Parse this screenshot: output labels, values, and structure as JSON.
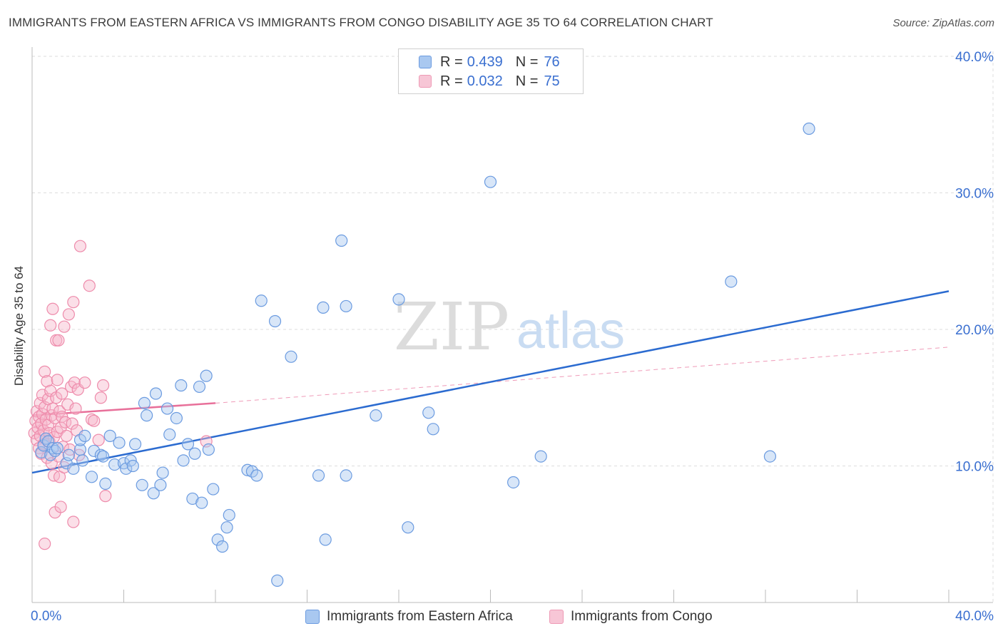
{
  "title": "IMMIGRANTS FROM EASTERN AFRICA VS IMMIGRANTS FROM CONGO DISABILITY AGE 35 TO 64 CORRELATION CHART",
  "source": "Source: ZipAtlas.com",
  "watermark": {
    "zip": "ZIP",
    "atlas": "atlas"
  },
  "legend": {
    "series1": {
      "r_label": "R =",
      "r_value": "0.439",
      "n_label": "N =",
      "n_value": "76"
    },
    "series2": {
      "r_label": "R =",
      "r_value": "0.032",
      "n_label": "N =",
      "n_value": "75"
    }
  },
  "bottom_legend": {
    "series1": "Immigrants from Eastern Africa",
    "series2": "Immigrants from Congo"
  },
  "colors": {
    "blue_fill": "#a9c8f0",
    "blue_stroke": "#6b9be0",
    "blue_line": "#2b6bd0",
    "pink_fill": "#f7b8cc",
    "pink_stroke": "#ee8bab",
    "pink_line": "#e8709a",
    "tick_text": "#3a6fd0",
    "grid": "#dddddd"
  },
  "chart_data": {
    "type": "scatter",
    "title": "IMMIGRANTS FROM EASTERN AFRICA VS IMMIGRANTS FROM CONGO DISABILITY AGE 35 TO 64 CORRELATION CHART",
    "xlabel": "",
    "ylabel": "Disability Age 35 to 64",
    "xlim": [
      0,
      40
    ],
    "ylim": [
      0,
      40
    ],
    "x_tick_labels": [
      "0.0%",
      "40.0%"
    ],
    "y_ticks": [
      10,
      20,
      30,
      40
    ],
    "y_tick_labels": [
      "10.0%",
      "20.0%",
      "30.0%",
      "40.0%"
    ],
    "series": [
      {
        "name": "Immigrants from Eastern Africa",
        "r": 0.439,
        "n": 76,
        "trend": {
          "x": [
            0,
            40
          ],
          "y": [
            9.5,
            22.8
          ],
          "style": "solid"
        },
        "points": [
          [
            0.4,
            11.0
          ],
          [
            0.5,
            11.5
          ],
          [
            0.6,
            12.0
          ],
          [
            0.7,
            11.8
          ],
          [
            0.8,
            10.8
          ],
          [
            0.9,
            11.3
          ],
          [
            1.0,
            11.1
          ],
          [
            1.1,
            11.3
          ],
          [
            1.5,
            10.2
          ],
          [
            1.6,
            10.8
          ],
          [
            1.8,
            9.8
          ],
          [
            2.1,
            11.2
          ],
          [
            2.1,
            11.9
          ],
          [
            2.3,
            12.2
          ],
          [
            2.2,
            10.4
          ],
          [
            2.6,
            9.2
          ],
          [
            2.7,
            11.1
          ],
          [
            3.0,
            10.8
          ],
          [
            3.1,
            10.7
          ],
          [
            3.2,
            8.7
          ],
          [
            3.4,
            12.2
          ],
          [
            3.6,
            10.1
          ],
          [
            3.8,
            11.7
          ],
          [
            4.0,
            10.2
          ],
          [
            4.1,
            9.8
          ],
          [
            4.3,
            10.4
          ],
          [
            4.4,
            10.0
          ],
          [
            4.5,
            11.6
          ],
          [
            4.8,
            8.6
          ],
          [
            4.9,
            14.6
          ],
          [
            5.0,
            13.7
          ],
          [
            5.3,
            8.0
          ],
          [
            5.4,
            15.3
          ],
          [
            5.6,
            8.6
          ],
          [
            5.7,
            9.5
          ],
          [
            5.9,
            14.2
          ],
          [
            6.0,
            12.3
          ],
          [
            6.3,
            13.5
          ],
          [
            6.5,
            15.9
          ],
          [
            6.6,
            10.4
          ],
          [
            6.8,
            11.6
          ],
          [
            7.0,
            7.6
          ],
          [
            7.1,
            10.9
          ],
          [
            7.3,
            15.8
          ],
          [
            7.4,
            7.3
          ],
          [
            7.6,
            16.6
          ],
          [
            7.7,
            11.2
          ],
          [
            7.9,
            8.3
          ],
          [
            8.1,
            4.6
          ],
          [
            8.3,
            4.1
          ],
          [
            8.5,
            5.5
          ],
          [
            8.6,
            6.4
          ],
          [
            9.4,
            9.7
          ],
          [
            9.6,
            9.6
          ],
          [
            9.8,
            9.3
          ],
          [
            10.0,
            22.1
          ],
          [
            10.6,
            20.6
          ],
          [
            10.7,
            1.6
          ],
          [
            11.3,
            18.0
          ],
          [
            12.5,
            9.3
          ],
          [
            12.7,
            21.6
          ],
          [
            12.8,
            4.6
          ],
          [
            13.5,
            26.5
          ],
          [
            13.7,
            9.3
          ],
          [
            13.7,
            21.7
          ],
          [
            15.0,
            13.7
          ],
          [
            16.0,
            22.2
          ],
          [
            16.4,
            5.5
          ],
          [
            17.3,
            13.9
          ],
          [
            17.5,
            12.7
          ],
          [
            20.0,
            30.8
          ],
          [
            21.0,
            8.8
          ],
          [
            22.2,
            10.7
          ],
          [
            30.5,
            23.5
          ],
          [
            32.2,
            10.7
          ],
          [
            33.9,
            34.7
          ]
        ]
      },
      {
        "name": "Immigrants from Congo",
        "r": 0.032,
        "n": 75,
        "trend": {
          "x": [
            0,
            8
          ],
          "y": [
            13.7,
            14.6
          ],
          "style": "solid",
          "extension": {
            "x": [
              8,
              40
            ],
            "y": [
              14.6,
              18.7
            ],
            "style": "dashed"
          }
        },
        "points": [
          [
            0.1,
            12.4
          ],
          [
            0.15,
            13.3
          ],
          [
            0.2,
            11.9
          ],
          [
            0.2,
            14.0
          ],
          [
            0.25,
            12.8
          ],
          [
            0.3,
            13.6
          ],
          [
            0.3,
            11.3
          ],
          [
            0.35,
            14.6
          ],
          [
            0.35,
            12.2
          ],
          [
            0.4,
            13.1
          ],
          [
            0.4,
            10.9
          ],
          [
            0.45,
            15.2
          ],
          [
            0.45,
            13.8
          ],
          [
            0.5,
            12.6
          ],
          [
            0.5,
            11.6
          ],
          [
            0.55,
            14.3
          ],
          [
            0.55,
            16.9
          ],
          [
            0.6,
            13.4
          ],
          [
            0.6,
            12.0
          ],
          [
            0.65,
            10.6
          ],
          [
            0.65,
            16.2
          ],
          [
            0.7,
            14.9
          ],
          [
            0.7,
            13.0
          ],
          [
            0.75,
            11.8
          ],
          [
            0.75,
            12.4
          ],
          [
            0.8,
            15.5
          ],
          [
            0.8,
            20.3
          ],
          [
            0.85,
            13.7
          ],
          [
            0.85,
            10.2
          ],
          [
            0.9,
            21.5
          ],
          [
            0.9,
            14.2
          ],
          [
            0.95,
            12.1
          ],
          [
            0.95,
            9.3
          ],
          [
            1.0,
            13.5
          ],
          [
            1.0,
            6.6
          ],
          [
            1.05,
            15.0
          ],
          [
            1.05,
            19.2
          ],
          [
            1.1,
            16.3
          ],
          [
            1.1,
            12.5
          ],
          [
            1.15,
            10.7
          ],
          [
            1.15,
            19.2
          ],
          [
            1.2,
            14.0
          ],
          [
            1.2,
            9.2
          ],
          [
            1.25,
            12.8
          ],
          [
            1.25,
            7.0
          ],
          [
            1.3,
            13.6
          ],
          [
            1.3,
            15.3
          ],
          [
            1.35,
            11.4
          ],
          [
            1.4,
            20.2
          ],
          [
            1.4,
            9.9
          ],
          [
            1.45,
            13.2
          ],
          [
            1.5,
            12.2
          ],
          [
            1.55,
            14.5
          ],
          [
            1.6,
            21.1
          ],
          [
            1.65,
            11.2
          ],
          [
            1.7,
            15.8
          ],
          [
            1.75,
            13.1
          ],
          [
            1.8,
            5.9
          ],
          [
            1.8,
            22.0
          ],
          [
            1.85,
            16.1
          ],
          [
            1.9,
            14.2
          ],
          [
            1.95,
            12.6
          ],
          [
            2.0,
            15.6
          ],
          [
            2.05,
            10.8
          ],
          [
            2.1,
            26.1
          ],
          [
            2.3,
            16.1
          ],
          [
            2.5,
            23.2
          ],
          [
            2.6,
            13.4
          ],
          [
            2.7,
            13.3
          ],
          [
            2.9,
            11.9
          ],
          [
            3.0,
            15.0
          ],
          [
            3.1,
            15.9
          ],
          [
            0.55,
            4.3
          ],
          [
            3.2,
            7.8
          ],
          [
            7.6,
            11.8
          ]
        ]
      }
    ]
  }
}
